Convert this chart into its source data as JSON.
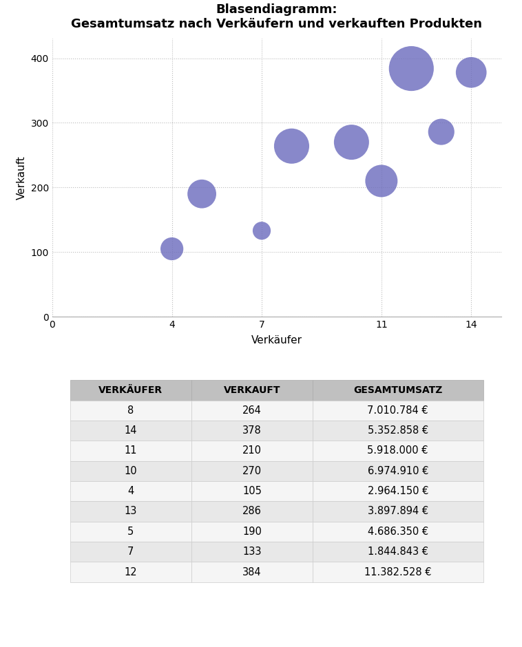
{
  "title": "Blasendiagramm:\nGesamtumsatz nach Verkäufern und verkauften Produkten",
  "xlabel": "Verkäufer",
  "ylabel": "Verkauft",
  "bubble_color": "#6b6bbd",
  "bubble_alpha": 0.8,
  "data": [
    {
      "verkaufer": 8,
      "verkauft": 264,
      "umsatz": 7010784,
      "umsatz_str": "7.010.784 €"
    },
    {
      "verkaufer": 14,
      "verkauft": 378,
      "umsatz": 5352858,
      "umsatz_str": "5.352.858 €"
    },
    {
      "verkaufer": 11,
      "verkauft": 210,
      "umsatz": 5918000,
      "umsatz_str": "5.918.000 €"
    },
    {
      "verkaufer": 10,
      "verkauft": 270,
      "umsatz": 6974910,
      "umsatz_str": "6.974.910 €"
    },
    {
      "verkaufer": 4,
      "verkauft": 105,
      "umsatz": 2964150,
      "umsatz_str": "2.964.150 €"
    },
    {
      "verkaufer": 13,
      "verkauft": 286,
      "umsatz": 3897894,
      "umsatz_str": "3.897.894 €"
    },
    {
      "verkaufer": 5,
      "verkauft": 190,
      "umsatz": 4686350,
      "umsatz_str": "4.686.350 €"
    },
    {
      "verkaufer": 7,
      "verkauft": 133,
      "umsatz": 1844843,
      "umsatz_str": "1.844.843 €"
    },
    {
      "verkaufer": 12,
      "verkauft": 384,
      "umsatz": 11382528,
      "umsatz_str": "11.382.528 €"
    }
  ],
  "table_headers": [
    "VERKÄUFER",
    "VERKAUFT",
    "GESAMTUMSATZ"
  ],
  "xlim": [
    0,
    15
  ],
  "ylim": [
    0,
    430
  ],
  "xticks": [
    0,
    4,
    7,
    11,
    14
  ],
  "yticks": [
    0,
    100,
    200,
    300,
    400
  ],
  "background_color": "#ffffff",
  "grid_color": "#bbbbbb",
  "title_fontsize": 13,
  "axis_label_fontsize": 11,
  "tick_fontsize": 10,
  "scale_factor": 2200
}
